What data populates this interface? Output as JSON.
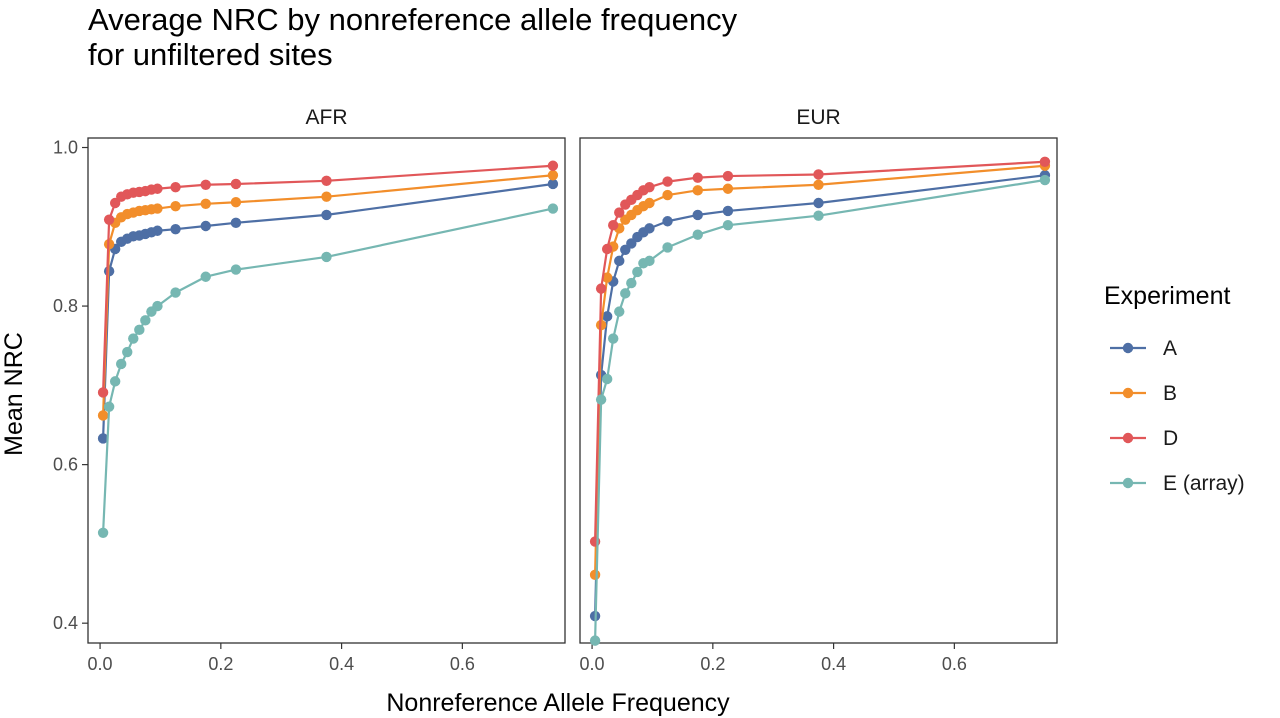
{
  "chart_data": {
    "type": "line",
    "title_lines": [
      "Average NRC by nonreference allele frequency",
      "for unfiltered sites"
    ],
    "xlabel": "Nonreference Allele Frequency",
    "ylabel": "Mean NRC",
    "xlim": [
      -0.02,
      0.77
    ],
    "ylim": [
      0.375,
      1.012
    ],
    "x_ticks": [
      0.0,
      0.2,
      0.4,
      0.6
    ],
    "x_tick_labels": [
      "0.0",
      "0.2",
      "0.4",
      "0.6"
    ],
    "y_ticks": [
      0.4,
      0.6,
      0.8,
      1.0
    ],
    "y_tick_labels": [
      "0.4",
      "0.6",
      "0.8",
      "1.0"
    ],
    "grid": false,
    "legend": {
      "title": "Experiment",
      "placement": "right"
    },
    "series_colors": {
      "A": "#4e6fa5",
      "B": "#f28e2b",
      "D": "#e15759",
      "E (array)": "#76b7b2"
    },
    "panels": [
      {
        "name": "AFR",
        "series": [
          {
            "name": "A",
            "points": [
              [
                0.005,
                0.633
              ],
              [
                0.015,
                0.844
              ],
              [
                0.025,
                0.872
              ],
              [
                0.035,
                0.881
              ],
              [
                0.045,
                0.885
              ],
              [
                0.055,
                0.888
              ],
              [
                0.065,
                0.889
              ],
              [
                0.075,
                0.891
              ],
              [
                0.085,
                0.893
              ],
              [
                0.095,
                0.895
              ],
              [
                0.125,
                0.897
              ],
              [
                0.175,
                0.901
              ],
              [
                0.225,
                0.905
              ],
              [
                0.375,
                0.915
              ],
              [
                0.75,
                0.954
              ]
            ]
          },
          {
            "name": "B",
            "points": [
              [
                0.005,
                0.662
              ],
              [
                0.015,
                0.878
              ],
              [
                0.025,
                0.905
              ],
              [
                0.035,
                0.912
              ],
              [
                0.045,
                0.916
              ],
              [
                0.055,
                0.918
              ],
              [
                0.065,
                0.92
              ],
              [
                0.075,
                0.921
              ],
              [
                0.085,
                0.922
              ],
              [
                0.095,
                0.923
              ],
              [
                0.125,
                0.926
              ],
              [
                0.175,
                0.929
              ],
              [
                0.225,
                0.931
              ],
              [
                0.375,
                0.938
              ],
              [
                0.75,
                0.965
              ]
            ]
          },
          {
            "name": "D",
            "points": [
              [
                0.005,
                0.691
              ],
              [
                0.015,
                0.909
              ],
              [
                0.025,
                0.93
              ],
              [
                0.035,
                0.938
              ],
              [
                0.045,
                0.941
              ],
              [
                0.055,
                0.943
              ],
              [
                0.065,
                0.944
              ],
              [
                0.075,
                0.945
              ],
              [
                0.085,
                0.947
              ],
              [
                0.095,
                0.948
              ],
              [
                0.125,
                0.95
              ],
              [
                0.175,
                0.953
              ],
              [
                0.225,
                0.954
              ],
              [
                0.375,
                0.958
              ],
              [
                0.75,
                0.977
              ]
            ]
          },
          {
            "name": "E (array)",
            "points": [
              [
                0.005,
                0.514
              ],
              [
                0.015,
                0.673
              ],
              [
                0.025,
                0.705
              ],
              [
                0.035,
                0.727
              ],
              [
                0.045,
                0.742
              ],
              [
                0.055,
                0.759
              ],
              [
                0.065,
                0.77
              ],
              [
                0.075,
                0.782
              ],
              [
                0.085,
                0.793
              ],
              [
                0.095,
                0.8
              ],
              [
                0.125,
                0.817
              ],
              [
                0.175,
                0.837
              ],
              [
                0.225,
                0.846
              ],
              [
                0.375,
                0.862
              ],
              [
                0.75,
                0.923
              ]
            ]
          }
        ]
      },
      {
        "name": "EUR",
        "series": [
          {
            "name": "A",
            "points": [
              [
                0.005,
                0.409
              ],
              [
                0.015,
                0.713
              ],
              [
                0.025,
                0.787
              ],
              [
                0.035,
                0.831
              ],
              [
                0.045,
                0.857
              ],
              [
                0.055,
                0.871
              ],
              [
                0.065,
                0.879
              ],
              [
                0.075,
                0.887
              ],
              [
                0.085,
                0.893
              ],
              [
                0.095,
                0.898
              ],
              [
                0.125,
                0.907
              ],
              [
                0.175,
                0.915
              ],
              [
                0.225,
                0.92
              ],
              [
                0.375,
                0.93
              ],
              [
                0.75,
                0.965
              ]
            ]
          },
          {
            "name": "B",
            "points": [
              [
                0.005,
                0.461
              ],
              [
                0.015,
                0.776
              ],
              [
                0.025,
                0.836
              ],
              [
                0.035,
                0.875
              ],
              [
                0.045,
                0.898
              ],
              [
                0.055,
                0.909
              ],
              [
                0.065,
                0.915
              ],
              [
                0.075,
                0.921
              ],
              [
                0.085,
                0.926
              ],
              [
                0.095,
                0.93
              ],
              [
                0.125,
                0.94
              ],
              [
                0.175,
                0.946
              ],
              [
                0.225,
                0.948
              ],
              [
                0.375,
                0.953
              ],
              [
                0.75,
                0.977
              ]
            ]
          },
          {
            "name": "D",
            "points": [
              [
                0.005,
                0.503
              ],
              [
                0.015,
                0.822
              ],
              [
                0.025,
                0.872
              ],
              [
                0.035,
                0.902
              ],
              [
                0.045,
                0.918
              ],
              [
                0.055,
                0.928
              ],
              [
                0.065,
                0.934
              ],
              [
                0.075,
                0.94
              ],
              [
                0.085,
                0.946
              ],
              [
                0.095,
                0.95
              ],
              [
                0.125,
                0.957
              ],
              [
                0.175,
                0.962
              ],
              [
                0.225,
                0.964
              ],
              [
                0.375,
                0.966
              ],
              [
                0.75,
                0.982
              ]
            ]
          },
          {
            "name": "E (array)",
            "points": [
              [
                0.005,
                0.378
              ],
              [
                0.015,
                0.682
              ],
              [
                0.025,
                0.708
              ],
              [
                0.035,
                0.759
              ],
              [
                0.045,
                0.793
              ],
              [
                0.055,
                0.816
              ],
              [
                0.065,
                0.829
              ],
              [
                0.075,
                0.843
              ],
              [
                0.085,
                0.854
              ],
              [
                0.095,
                0.857
              ],
              [
                0.125,
                0.874
              ],
              [
                0.175,
                0.89
              ],
              [
                0.225,
                0.902
              ],
              [
                0.375,
                0.914
              ],
              [
                0.75,
                0.959
              ]
            ]
          }
        ]
      }
    ]
  }
}
